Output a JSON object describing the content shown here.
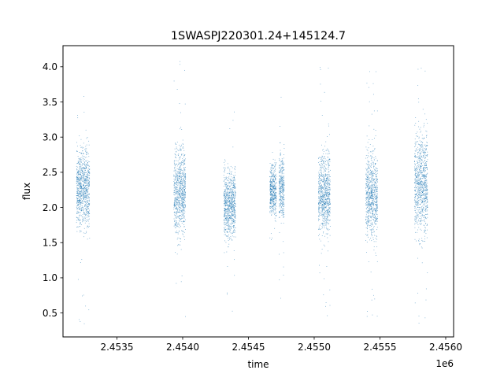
{
  "chart_data": {
    "type": "scatter",
    "title": "1SWASPJ220301.24+145124.7",
    "xlabel": "time",
    "ylabel": "flux",
    "x_offset_label": "1e6",
    "x_tick_labels": [
      "2.4535",
      "2.4540",
      "2.4545",
      "2.4550",
      "2.4555",
      "2.4560"
    ],
    "y_tick_labels": [
      "0.5",
      "1.0",
      "1.5",
      "2.0",
      "2.5",
      "3.0",
      "3.5",
      "4.0"
    ],
    "x_ticks": [
      2453500,
      2454000,
      2454500,
      2455000,
      2455500,
      2456000
    ],
    "y_ticks": [
      0.5,
      1.0,
      1.5,
      2.0,
      2.5,
      3.0,
      3.5,
      4.0
    ],
    "xlim": [
      2453090,
      2456060
    ],
    "ylim": [
      0.16,
      4.3
    ],
    "grid": false,
    "point_color": "#1f77b4",
    "series": [
      {
        "observing_seasons": [
          {
            "x_range": [
              2453190,
              2453290
            ],
            "y_center": 2.27,
            "y_spread": 0.55,
            "y_min": 0.35,
            "y_max": 3.77
          },
          {
            "x_range": [
              2453930,
              2454020
            ],
            "y_center": 2.25,
            "y_spread": 0.6,
            "y_min": 0.4,
            "y_max": 4.1
          },
          {
            "x_range": [
              2454310,
              2454400
            ],
            "y_center": 2.05,
            "y_spread": 0.45,
            "y_min": 0.5,
            "y_max": 3.4
          },
          {
            "x_range": [
              2454660,
              2454710
            ],
            "y_center": 2.25,
            "y_spread": 0.35,
            "y_min": 1.45,
            "y_max": 2.85
          },
          {
            "x_range": [
              2454730,
              2454770
            ],
            "y_center": 2.3,
            "y_spread": 0.45,
            "y_min": 0.7,
            "y_max": 3.82
          },
          {
            "x_range": [
              2455030,
              2455120
            ],
            "y_center": 2.2,
            "y_spread": 0.55,
            "y_min": 0.45,
            "y_max": 4.06
          },
          {
            "x_range": [
              2455390,
              2455480
            ],
            "y_center": 2.2,
            "y_spread": 0.6,
            "y_min": 0.35,
            "y_max": 4.05
          },
          {
            "x_range": [
              2455760,
              2455860
            ],
            "y_center": 2.35,
            "y_spread": 0.7,
            "y_min": 0.35,
            "y_max": 4.12
          }
        ]
      }
    ]
  }
}
